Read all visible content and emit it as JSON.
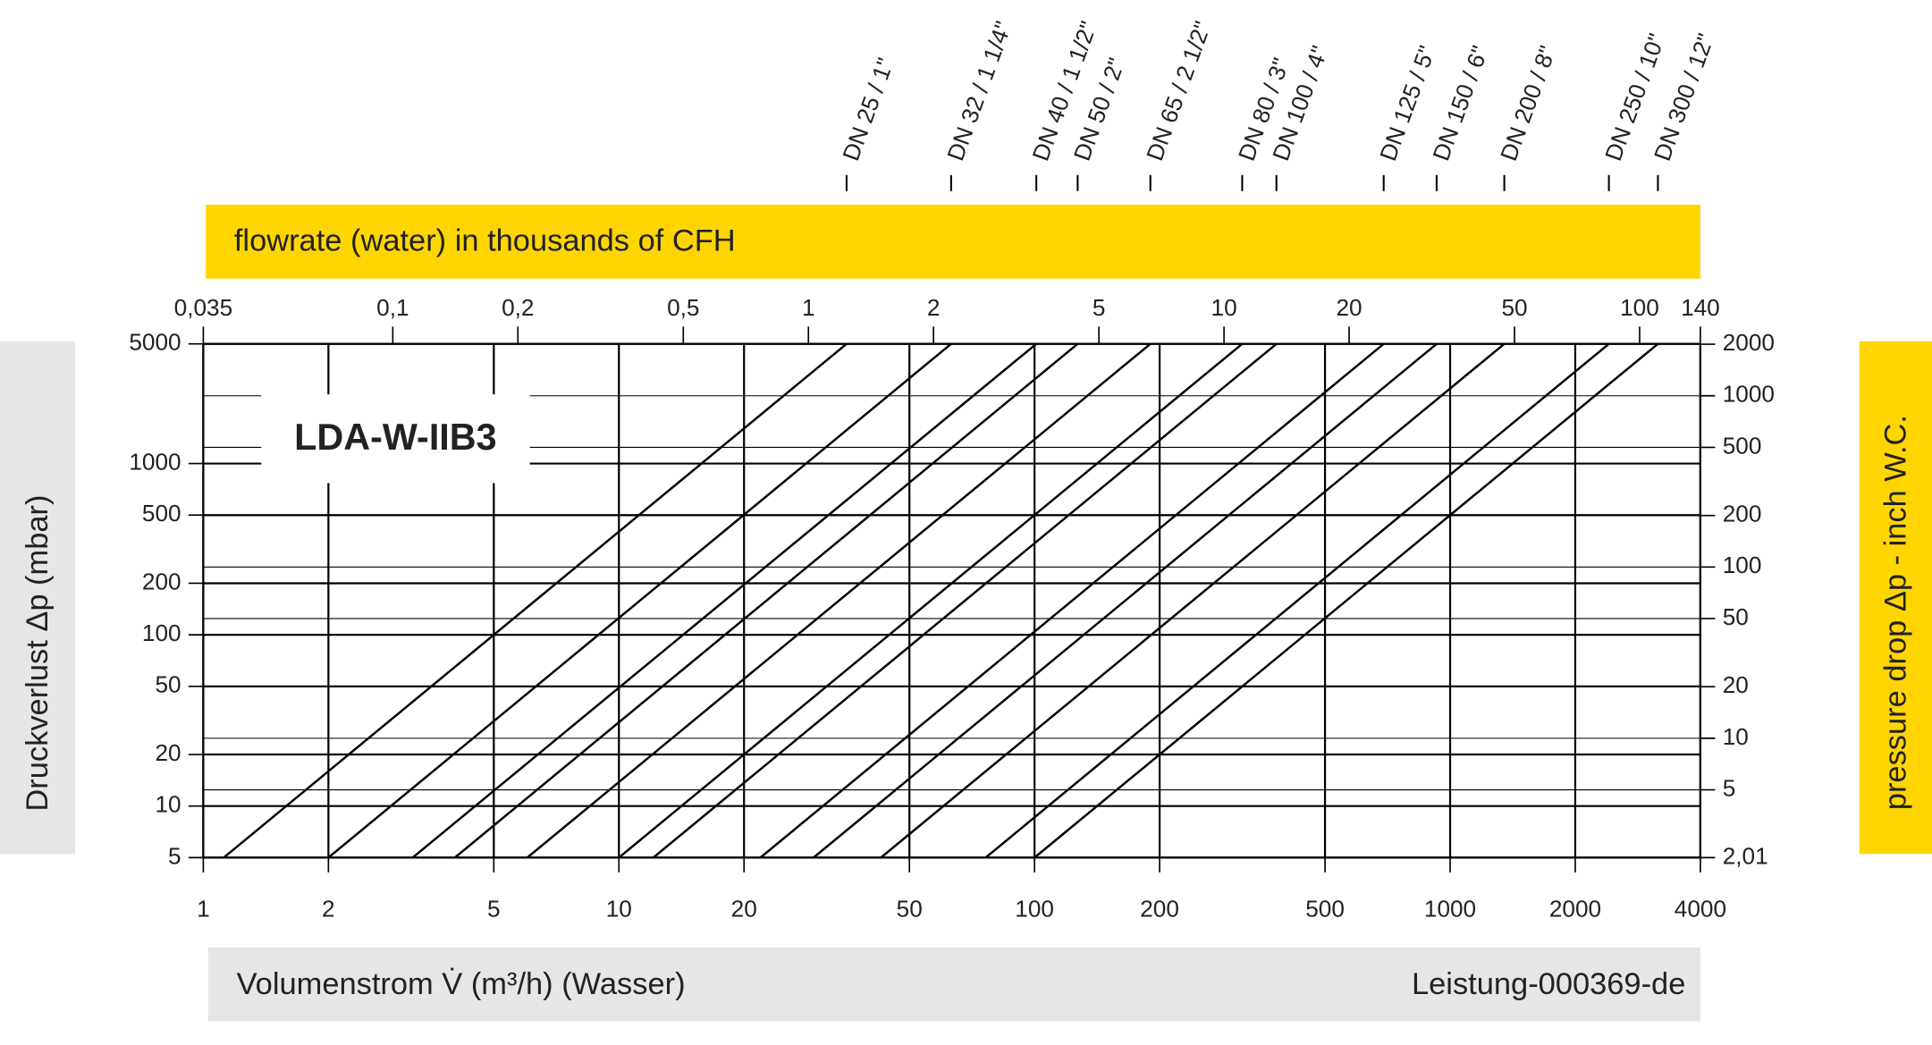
{
  "chart_data": {
    "type": "line",
    "title": "LDA-W-IIB3",
    "xlabel": "Volumenstrom V̇ (m³/h) (Wasser)",
    "ylabel": "Druckverlust Δp (mbar)",
    "x2label": "flowrate (water) in thousands of CFH",
    "y2label": "pressure drop Δp - inch W.C.",
    "annotation": "Leistung-000369-de",
    "xscale": "log",
    "yscale": "log",
    "grid": true,
    "xlim": [
      1,
      4000
    ],
    "xticks": [
      1,
      2,
      5,
      10,
      20,
      50,
      100,
      200,
      500,
      1000,
      2000,
      4000
    ],
    "x2lim": [
      0.035,
      140
    ],
    "x2ticks": [
      {
        "value": 0.035,
        "label": "0,035"
      },
      {
        "value": 0.1,
        "label": "0,1"
      },
      {
        "value": 0.2,
        "label": "0,2"
      },
      {
        "value": 0.5,
        "label": "0,5"
      },
      1,
      2,
      5,
      10,
      20,
      50,
      100,
      140
    ],
    "ylim": [
      5,
      5000
    ],
    "yticks": [
      5,
      10,
      20,
      50,
      100,
      200,
      500,
      1000,
      5000
    ],
    "y2lim": [
      2.01,
      2010
    ],
    "y2ticks": [
      {
        "value": 2.01,
        "label": "2,01"
      },
      5,
      10,
      20,
      50,
      100,
      200,
      500,
      1000,
      2000
    ],
    "series": [
      {
        "name": "DN 25 / 1\"",
        "color": "#000000",
        "x": [
          1.12,
          35.3
        ],
        "values": [
          5,
          5000
        ]
      },
      {
        "name": "DN 32 / 1 1/4\"",
        "color": "#000000",
        "x": [
          2.0,
          63
        ],
        "values": [
          5,
          5000
        ]
      },
      {
        "name": "DN 40 / 1 1/2\"",
        "color": "#000000",
        "x": [
          3.19,
          101
        ],
        "values": [
          5,
          5000
        ]
      },
      {
        "name": "DN 50 / 2\"",
        "color": "#000000",
        "x": [
          4.03,
          127
        ],
        "values": [
          5,
          5000
        ]
      },
      {
        "name": "DN 65 / 2 1/2\"",
        "color": "#000000",
        "x": [
          6.02,
          190
        ],
        "values": [
          5,
          5000
        ]
      },
      {
        "name": "DN 80 / 3\"",
        "color": "#000000",
        "x": [
          10,
          316
        ],
        "values": [
          5,
          5000
        ]
      },
      {
        "name": "DN 100 / 4\"",
        "color": "#000000",
        "x": [
          12.1,
          382
        ],
        "values": [
          5,
          5000
        ]
      },
      {
        "name": "DN 125 / 5\"",
        "color": "#000000",
        "x": [
          21.9,
          692
        ],
        "values": [
          5,
          5000
        ]
      },
      {
        "name": "DN 150 / 6\"",
        "color": "#000000",
        "x": [
          29.4,
          928
        ],
        "values": [
          5,
          5000
        ]
      },
      {
        "name": "DN 200 / 8\"",
        "color": "#000000",
        "x": [
          42.7,
          1350
        ],
        "values": [
          5,
          5000
        ]
      },
      {
        "name": "DN 250 / 10\"",
        "color": "#000000",
        "x": [
          76.3,
          2410
        ],
        "values": [
          5,
          5000
        ]
      },
      {
        "name": "DN 300 / 12\"",
        "color": "#000000",
        "x": [
          100,
          3162
        ],
        "values": [
          5,
          5000
        ]
      }
    ]
  }
}
